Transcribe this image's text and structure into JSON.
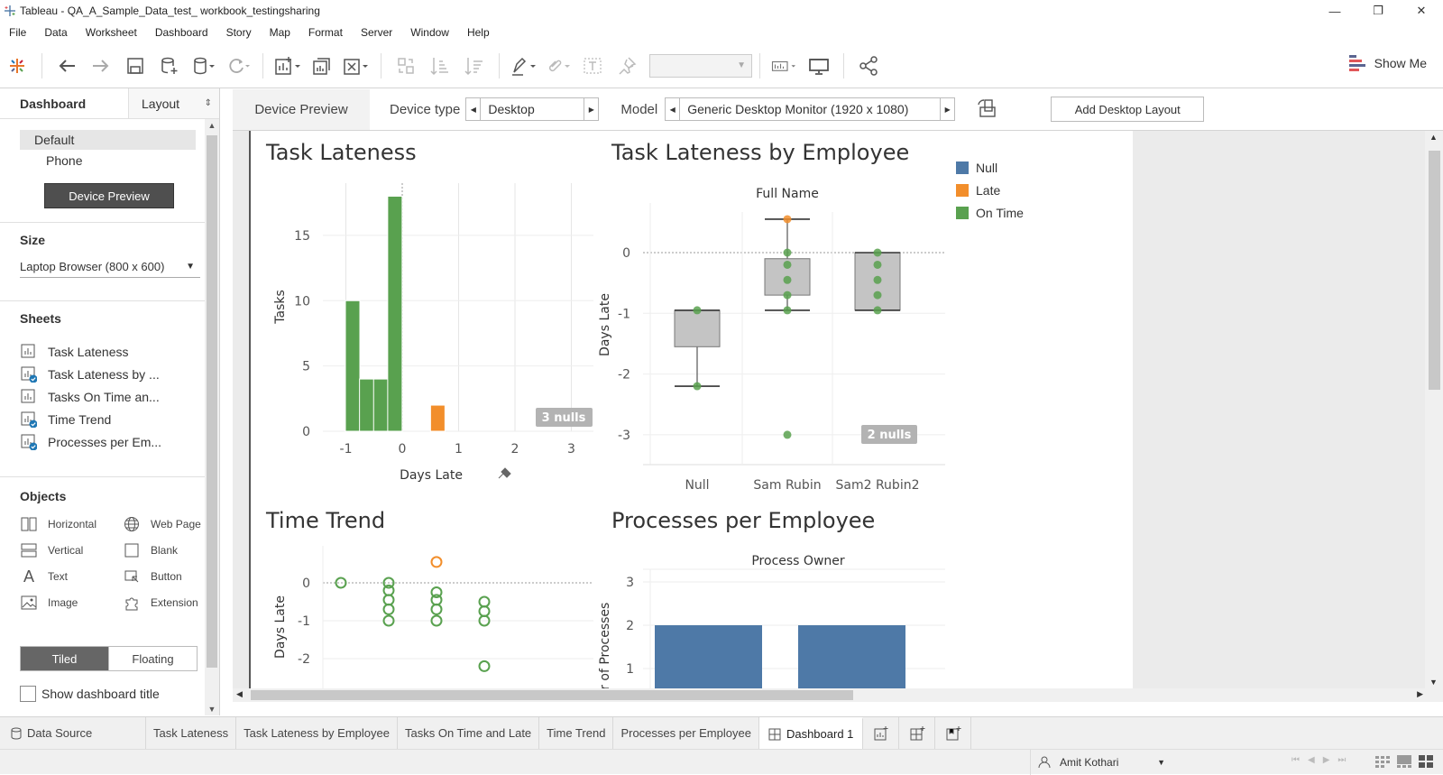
{
  "window": {
    "title": "Tableau - QA_A_Sample_Data_test_ workbook_testingsharing",
    "controls": [
      "—",
      "❐",
      "✕"
    ]
  },
  "menu": [
    "File",
    "Data",
    "Worksheet",
    "Dashboard",
    "Story",
    "Map",
    "Format",
    "Server",
    "Window",
    "Help"
  ],
  "toolbar": {
    "show_me": "Show Me"
  },
  "left_pane": {
    "tab_dashboard": "Dashboard",
    "tab_layout": "Layout",
    "devices": [
      "Default",
      "Phone"
    ],
    "device_preview_button": "Device Preview",
    "size_heading": "Size",
    "size_value": "Laptop Browser (800 x 600)",
    "sheets_heading": "Sheets",
    "sheets": [
      {
        "label": "Task Lateness",
        "used": false
      },
      {
        "label": "Task Lateness by ...",
        "used": true
      },
      {
        "label": "Tasks On Time an...",
        "used": false
      },
      {
        "label": "Time Trend",
        "used": true
      },
      {
        "label": "Processes per Em...",
        "used": true
      }
    ],
    "objects_heading": "Objects",
    "objects": [
      "Horizontal",
      "Web Page",
      "Vertical",
      "Blank",
      "Text",
      "Button",
      "Image",
      "Extension"
    ],
    "tiled": "Tiled",
    "floating": "Floating",
    "show_title": "Show dashboard title"
  },
  "device_bar": {
    "tab": "Device Preview",
    "device_type_label": "Device type",
    "device_type": "Desktop",
    "model_label": "Model",
    "model": "Generic Desktop Monitor (1920 x 1080)",
    "add_layout": "Add Desktop Layout"
  },
  "colors": {
    "null": "#4e79a7",
    "late": "#f28e2b",
    "on_time": "#59a14f"
  },
  "legend": [
    "Null",
    "Late",
    "On Time"
  ],
  "sheets_view": {
    "task_lateness": {
      "title": "Task Lateness",
      "nulls": "3 nulls"
    },
    "by_employee": {
      "title": "Task Lateness by Employee",
      "nulls": "2 nulls"
    },
    "time_trend": {
      "title": "Time Trend"
    },
    "processes": {
      "title": "Processes per Employee"
    }
  },
  "chart_data": [
    {
      "type": "bar",
      "title": "Task Lateness",
      "xlabel": "Days Late",
      "ylabel": "Tasks",
      "xticks": [
        "-1",
        "0",
        "1",
        "2",
        "3"
      ],
      "yticks": [
        "0",
        "5",
        "10",
        "15"
      ],
      "ylim": [
        0,
        19
      ],
      "bars": [
        {
          "x": -0.88,
          "value": 10,
          "color": "on_time"
        },
        {
          "x": -0.63,
          "value": 4,
          "color": "on_time"
        },
        {
          "x": -0.38,
          "value": 4,
          "color": "on_time"
        },
        {
          "x": -0.13,
          "value": 18,
          "color": "on_time"
        },
        {
          "x": 0.63,
          "value": 2,
          "color": "late"
        }
      ]
    },
    {
      "type": "boxplot",
      "title": "Task Lateness by Employee",
      "column_header": "Full Name",
      "categories": [
        "Null",
        "Sam Rubin",
        "Sam2 Rubin2"
      ],
      "ylabel": "Days Late",
      "yticks": [
        "0",
        "-1",
        "-2",
        "-3"
      ],
      "ylim": [
        -3.25,
        0.5
      ],
      "boxes": [
        {
          "min": -2.2,
          "q1": -1.55,
          "q3": -0.95,
          "max": -0.95,
          "points": [
            -0.95,
            -2.2
          ]
        },
        {
          "min": -0.95,
          "q1": -0.7,
          "q3": -0.1,
          "max": 0.55,
          "points": [
            0.55,
            0,
            -0.2,
            -0.45,
            -0.7,
            -0.95,
            -3
          ]
        },
        {
          "min": -0.95,
          "q1": -0.95,
          "q3": 0,
          "max": 0,
          "points": [
            0,
            -0.2,
            -0.45,
            -0.7,
            -0.95
          ]
        }
      ]
    },
    {
      "type": "scatter",
      "title": "Time Trend",
      "ylabel": "Days Late",
      "yticks": [
        "0",
        "-1",
        "-2"
      ],
      "points": [
        {
          "x": 1,
          "y": 0,
          "color": "on_time"
        },
        {
          "x": 2,
          "y": 0,
          "color": "on_time"
        },
        {
          "x": 2,
          "y": -0.2,
          "color": "on_time"
        },
        {
          "x": 2,
          "y": -0.45,
          "color": "on_time"
        },
        {
          "x": 2,
          "y": -0.7,
          "color": "on_time"
        },
        {
          "x": 2,
          "y": -1,
          "color": "on_time"
        },
        {
          "x": 3,
          "y": 0.55,
          "color": "late"
        },
        {
          "x": 3,
          "y": -0.25,
          "color": "on_time"
        },
        {
          "x": 3,
          "y": -0.45,
          "color": "on_time"
        },
        {
          "x": 3,
          "y": -0.7,
          "color": "on_time"
        },
        {
          "x": 3,
          "y": -1,
          "color": "on_time"
        },
        {
          "x": 4,
          "y": -0.5,
          "color": "on_time"
        },
        {
          "x": 4,
          "y": -0.75,
          "color": "on_time"
        },
        {
          "x": 4,
          "y": -1,
          "color": "on_time"
        },
        {
          "x": 4,
          "y": -2.2,
          "color": "on_time"
        }
      ]
    },
    {
      "type": "bar",
      "title": "Processes per Employee",
      "column_header": "Process Owner",
      "ylabel": "ber of Processes",
      "yticks": [
        "1",
        "2",
        "3"
      ],
      "values": [
        2,
        2
      ]
    }
  ],
  "bottom_tabs": {
    "data_source": "Data Source",
    "tabs": [
      "Task Lateness",
      "Task Lateness by Employee",
      "Tasks On Time and Late",
      "Time Trend",
      "Processes per Employee"
    ],
    "active": "Dashboard 1"
  },
  "status": {
    "user": "Amit Kothari"
  }
}
